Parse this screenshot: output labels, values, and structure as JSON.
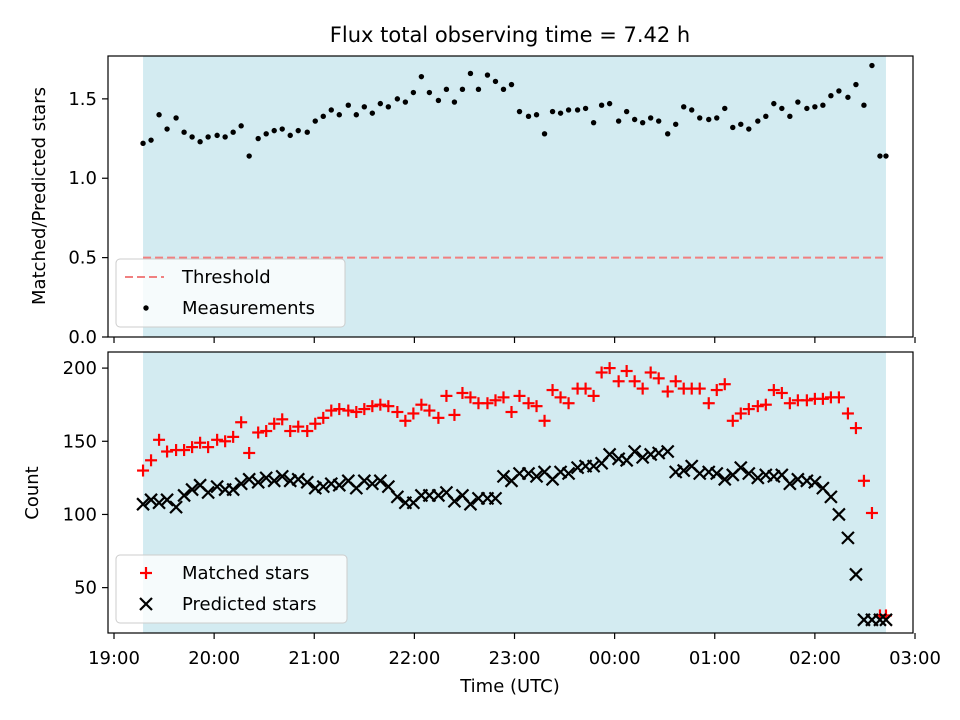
{
  "chart_data": [
    {
      "type": "scatter",
      "title": "Flux total observing time = 7.42 h",
      "xlabel": "",
      "ylabel": "Matched/Predicted stars",
      "ylim": [
        0.0,
        1.77
      ],
      "yticks": [
        0.0,
        0.5,
        1.0,
        1.5
      ],
      "ytick_labels": [
        "0.0",
        "0.5",
        "1.0",
        "1.5"
      ],
      "x_unit": "hours since 19:00 UTC",
      "xlim": [
        -0.06,
        7.98
      ],
      "shaded_span": [
        0.29,
        7.71
      ],
      "shade_color": "#d3ebf1",
      "threshold": {
        "name": "Threshold",
        "y": 0.5,
        "x_range": [
          0.29,
          7.71
        ],
        "color": "#f08080",
        "style": "dashed"
      },
      "legend": {
        "placement": "lower-left",
        "entries": [
          {
            "label": "Threshold",
            "kind": "dashed-line",
            "color": "#f08080"
          },
          {
            "label": "Measurements",
            "kind": "dot",
            "color": "#000000"
          }
        ]
      },
      "series": [
        {
          "name": "Measurements",
          "color": "#000000",
          "marker": "dot",
          "x": [
            0.29,
            0.37,
            0.45,
            0.53,
            0.62,
            0.7,
            0.78,
            0.86,
            0.94,
            1.03,
            1.11,
            1.19,
            1.27,
            1.35,
            1.44,
            1.52,
            1.6,
            1.68,
            1.76,
            1.84,
            1.93,
            2.01,
            2.09,
            2.17,
            2.25,
            2.34,
            2.42,
            2.5,
            2.58,
            2.66,
            2.74,
            2.83,
            2.91,
            2.99,
            3.07,
            3.15,
            3.24,
            3.32,
            3.4,
            3.48,
            3.56,
            3.64,
            3.73,
            3.81,
            3.89,
            3.97,
            4.05,
            4.14,
            4.22,
            4.3,
            4.38,
            4.46,
            4.54,
            4.63,
            4.71,
            4.79,
            4.87,
            4.95,
            5.04,
            5.12,
            5.2,
            5.28,
            5.36,
            5.44,
            5.53,
            5.61,
            5.69,
            5.77,
            5.85,
            5.94,
            6.02,
            6.1,
            6.18,
            6.26,
            6.34,
            6.43,
            6.51,
            6.59,
            6.67,
            6.75,
            6.83,
            6.92,
            7.0,
            7.08,
            7.16,
            7.24,
            7.33,
            7.41,
            7.49,
            7.57,
            7.65,
            7.71
          ],
          "y": [
            1.22,
            1.24,
            1.4,
            1.31,
            1.38,
            1.29,
            1.26,
            1.23,
            1.26,
            1.27,
            1.26,
            1.29,
            1.33,
            1.14,
            1.25,
            1.28,
            1.3,
            1.31,
            1.27,
            1.3,
            1.29,
            1.36,
            1.39,
            1.43,
            1.4,
            1.46,
            1.4,
            1.45,
            1.41,
            1.47,
            1.45,
            1.5,
            1.48,
            1.54,
            1.64,
            1.54,
            1.49,
            1.56,
            1.48,
            1.56,
            1.66,
            1.56,
            1.65,
            1.61,
            1.56,
            1.59,
            1.42,
            1.39,
            1.4,
            1.28,
            1.42,
            1.41,
            1.43,
            1.43,
            1.44,
            1.35,
            1.46,
            1.47,
            1.36,
            1.42,
            1.37,
            1.35,
            1.38,
            1.36,
            1.28,
            1.34,
            1.45,
            1.43,
            1.38,
            1.37,
            1.38,
            1.44,
            1.32,
            1.34,
            1.31,
            1.36,
            1.39,
            1.47,
            1.44,
            1.39,
            1.48,
            1.44,
            1.45,
            1.46,
            1.52,
            1.55,
            1.51,
            1.59,
            1.46,
            1.71,
            1.14,
            1.14
          ]
        }
      ]
    },
    {
      "type": "scatter",
      "title": "",
      "xlabel": "Time (UTC)",
      "ylabel": "Count",
      "ylim": [
        19,
        211
      ],
      "yticks": [
        50,
        100,
        150,
        200
      ],
      "ytick_labels": [
        "50",
        "100",
        "150",
        "200"
      ],
      "x_unit": "hours since 19:00 UTC",
      "xlim": [
        -0.06,
        7.98
      ],
      "xticks": [
        0,
        1,
        2,
        3,
        4,
        5,
        6,
        7,
        8
      ],
      "xtick_labels": [
        "19:00",
        "20:00",
        "21:00",
        "22:00",
        "23:00",
        "00:00",
        "01:00",
        "02:00",
        "03:00"
      ],
      "shaded_span": [
        0.29,
        7.71
      ],
      "shade_color": "#d3ebf1",
      "legend": {
        "placement": "lower-left",
        "entries": [
          {
            "label": "Matched stars",
            "kind": "plus",
            "color": "#ff0000"
          },
          {
            "label": "Predicted stars",
            "kind": "x",
            "color": "#000000"
          }
        ]
      },
      "series": [
        {
          "name": "Matched stars",
          "color": "#ff0000",
          "marker": "plus",
          "x": [
            0.29,
            0.37,
            0.45,
            0.53,
            0.62,
            0.7,
            0.78,
            0.86,
            0.94,
            1.03,
            1.11,
            1.19,
            1.27,
            1.35,
            1.44,
            1.52,
            1.6,
            1.68,
            1.76,
            1.84,
            1.93,
            2.01,
            2.09,
            2.17,
            2.25,
            2.34,
            2.42,
            2.5,
            2.58,
            2.66,
            2.74,
            2.83,
            2.91,
            2.99,
            3.07,
            3.15,
            3.24,
            3.32,
            3.4,
            3.48,
            3.56,
            3.64,
            3.73,
            3.81,
            3.89,
            3.97,
            4.05,
            4.14,
            4.22,
            4.3,
            4.38,
            4.46,
            4.54,
            4.63,
            4.71,
            4.79,
            4.87,
            4.95,
            5.04,
            5.12,
            5.2,
            5.28,
            5.36,
            5.44,
            5.53,
            5.61,
            5.69,
            5.77,
            5.85,
            5.94,
            6.02,
            6.1,
            6.18,
            6.26,
            6.34,
            6.43,
            6.51,
            6.59,
            6.67,
            6.75,
            6.83,
            6.92,
            7.0,
            7.08,
            7.16,
            7.24,
            7.33,
            7.41,
            7.49,
            7.57,
            7.65,
            7.71
          ],
          "y": [
            130,
            137,
            151,
            143,
            144,
            144,
            146,
            149,
            146,
            151,
            150,
            153,
            163,
            142,
            156,
            157,
            162,
            165,
            157,
            160,
            157,
            162,
            166,
            171,
            172,
            171,
            170,
            172,
            174,
            175,
            174,
            170,
            164,
            169,
            175,
            171,
            166,
            181,
            168,
            183,
            180,
            176,
            176,
            178,
            180,
            170,
            181,
            176,
            174,
            164,
            185,
            180,
            176,
            186,
            186,
            181,
            197,
            200,
            191,
            198,
            191,
            186,
            197,
            193,
            184,
            191,
            186,
            186,
            186,
            176,
            185,
            189,
            164,
            169,
            172,
            174,
            175,
            185,
            183,
            176,
            178,
            178,
            179,
            179,
            180,
            180,
            169,
            159,
            123,
            101,
            31,
            31
          ]
        },
        {
          "name": "Predicted stars",
          "color": "#000000",
          "marker": "x",
          "x": [
            0.29,
            0.37,
            0.45,
            0.53,
            0.62,
            0.7,
            0.78,
            0.86,
            0.94,
            1.03,
            1.11,
            1.19,
            1.27,
            1.35,
            1.44,
            1.52,
            1.6,
            1.68,
            1.76,
            1.84,
            1.93,
            2.01,
            2.09,
            2.17,
            2.25,
            2.34,
            2.42,
            2.5,
            2.58,
            2.66,
            2.74,
            2.83,
            2.91,
            2.99,
            3.07,
            3.15,
            3.24,
            3.32,
            3.4,
            3.48,
            3.56,
            3.64,
            3.73,
            3.81,
            3.89,
            3.97,
            4.05,
            4.14,
            4.22,
            4.3,
            4.38,
            4.46,
            4.54,
            4.63,
            4.71,
            4.79,
            4.87,
            4.95,
            5.04,
            5.12,
            5.2,
            5.28,
            5.36,
            5.44,
            5.53,
            5.61,
            5.69,
            5.77,
            5.85,
            5.94,
            6.02,
            6.1,
            6.18,
            6.26,
            6.34,
            6.43,
            6.51,
            6.59,
            6.67,
            6.75,
            6.83,
            6.92,
            7.0,
            7.08,
            7.16,
            7.24,
            7.33,
            7.41,
            7.49,
            7.57,
            7.65,
            7.71
          ],
          "y": [
            107,
            110,
            108,
            110,
            105,
            113,
            117,
            120,
            115,
            119,
            117,
            117,
            121,
            124,
            122,
            125,
            123,
            126,
            123,
            124,
            122,
            118,
            119,
            121,
            120,
            123,
            118,
            123,
            121,
            123,
            119,
            112,
            108,
            108,
            113,
            113,
            113,
            115,
            109,
            113,
            107,
            111,
            111,
            111,
            126,
            123,
            128,
            128,
            126,
            129,
            124,
            129,
            128,
            132,
            133,
            133,
            135,
            141,
            138,
            137,
            143,
            139,
            141,
            142,
            143,
            129,
            130,
            133,
            128,
            129,
            128,
            124,
            127,
            132,
            128,
            125,
            127,
            126,
            127,
            121,
            124,
            123,
            122,
            118,
            112,
            100,
            84,
            59,
            28,
            28,
            28,
            28
          ]
        }
      ]
    }
  ]
}
